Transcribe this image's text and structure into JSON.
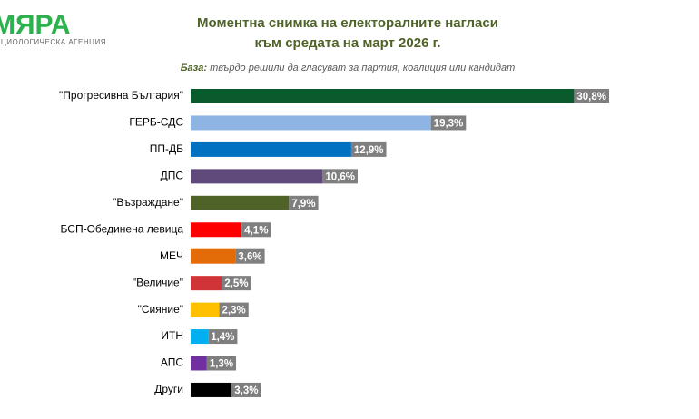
{
  "logo": {
    "name": "МЯРА",
    "tagline": "СОЦИОЛОГИЧЕСКА АГЕНЦИЯ"
  },
  "chart_data": {
    "type": "bar",
    "orientation": "horizontal",
    "title_lines": [
      "Моментна снимка на електоралните нагласи",
      "към средата на март 2026 г."
    ],
    "base_label": "База:",
    "base_text": "твърдо решили да гласуват за партия, коалиция или кандидат",
    "categories": [
      "\"Прогресивна България\"",
      "ГЕРБ-СДС",
      "ПП-ДБ",
      "ДПС",
      "\"Възраждане\"",
      "БСП-Обединена левица",
      "МЕЧ",
      "\"Величие\"",
      "\"Сияние\"",
      "ИТН",
      "АПС",
      "Други"
    ],
    "values": [
      30.8,
      19.3,
      12.9,
      10.6,
      7.9,
      4.1,
      3.6,
      2.5,
      2.3,
      1.4,
      1.3,
      3.3
    ],
    "value_labels": [
      "30,8%",
      "19,3%",
      "12,9%",
      "10,6%",
      "7,9%",
      "4,1%",
      "3,6%",
      "2,5%",
      "2,3%",
      "1,4%",
      "1,3%",
      "3,3%"
    ],
    "colors": [
      "#0b5a2e",
      "#8eb4e3",
      "#0070c0",
      "#604a7b",
      "#4f6228",
      "#ff0000",
      "#e36c09",
      "#d13438",
      "#ffc000",
      "#00b0f0",
      "#7030a0",
      "#000000"
    ],
    "xlim": [
      0,
      35
    ]
  }
}
